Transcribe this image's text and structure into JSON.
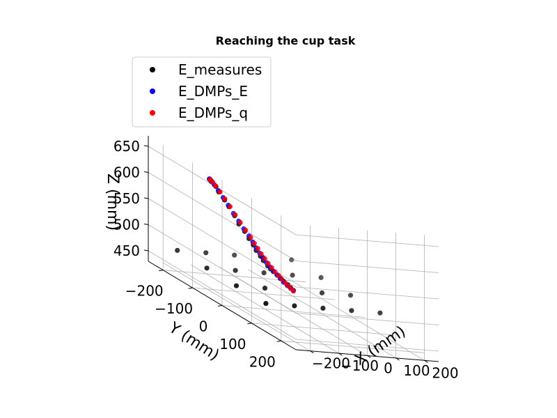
{
  "chart_data": {
    "type": "scatter",
    "projection": "3d",
    "title": "Reaching the cup task",
    "xlabel": "X (mm)",
    "ylabel": "Y (mm)",
    "zlabel": "Z (mm)",
    "xlim": [
      -250,
      250
    ],
    "ylim": [
      -250,
      250
    ],
    "zlim": [
      430,
      670
    ],
    "x_ticks": [
      -200,
      -100,
      0,
      100,
      200
    ],
    "y_ticks": [
      -200,
      -100,
      0,
      100,
      200
    ],
    "z_ticks": [
      450,
      500,
      550,
      600,
      650
    ],
    "x_tick_labels": [
      "−200",
      "−100",
      "0",
      "100",
      "200"
    ],
    "y_tick_labels": [
      "−200",
      "−100",
      "0",
      "100",
      "200"
    ],
    "z_tick_labels": [
      "450",
      "500",
      "550",
      "600",
      "650"
    ],
    "grid": true,
    "legend_position": "upper-left",
    "series": [
      {
        "name": "E_measures",
        "color": "#000000",
        "points": [
          [
            -200,
            -200,
            470
          ],
          [
            -100,
            -200,
            470
          ],
          [
            0,
            -200,
            470
          ],
          [
            100,
            -200,
            470
          ],
          [
            200,
            -200,
            470
          ],
          [
            -200,
            -100,
            470
          ],
          [
            -100,
            -100,
            470
          ],
          [
            0,
            -100,
            470
          ],
          [
            100,
            -100,
            470
          ],
          [
            200,
            -100,
            470
          ],
          [
            -200,
            0,
            470
          ],
          [
            -100,
            0,
            470
          ],
          [
            0,
            0,
            470
          ],
          [
            100,
            0,
            470
          ],
          [
            200,
            0,
            470
          ],
          [
            -200,
            100,
            470
          ],
          [
            -100,
            100,
            470
          ],
          [
            0,
            100,
            470
          ],
          [
            100,
            100,
            470
          ],
          [
            200,
            100,
            470
          ],
          [
            0,
            0,
            470
          ],
          [
            -10,
            0,
            475
          ],
          [
            -20,
            0,
            480
          ],
          [
            -30,
            -5,
            485
          ],
          [
            -40,
            -5,
            490
          ],
          [
            -50,
            -5,
            495
          ],
          [
            -60,
            -10,
            500
          ],
          [
            -70,
            -10,
            505
          ],
          [
            -80,
            -10,
            510
          ],
          [
            -90,
            -15,
            518
          ],
          [
            -100,
            -15,
            526
          ],
          [
            -110,
            -20,
            535
          ],
          [
            -120,
            -20,
            545
          ],
          [
            -130,
            -25,
            555
          ],
          [
            -145,
            -25,
            568
          ],
          [
            -160,
            -30,
            580
          ],
          [
            -175,
            -30,
            595
          ],
          [
            -190,
            -35,
            610
          ],
          [
            -205,
            -35,
            622
          ],
          [
            -220,
            -40,
            635
          ],
          [
            -230,
            -40,
            645
          ],
          [
            -240,
            -45,
            652
          ],
          [
            -245,
            -45,
            655
          ],
          [
            -248,
            -45,
            657
          ]
        ]
      },
      {
        "name": "E_DMPs_E",
        "color": "#0000ff",
        "points": [
          [
            0,
            0,
            470
          ],
          [
            -10,
            0,
            474
          ],
          [
            -20,
            -2,
            478
          ],
          [
            -30,
            -4,
            483
          ],
          [
            -40,
            -6,
            489
          ],
          [
            -50,
            -8,
            495
          ],
          [
            -60,
            -10,
            501
          ],
          [
            -70,
            -12,
            508
          ],
          [
            -80,
            -14,
            515
          ],
          [
            -90,
            -16,
            523
          ],
          [
            -100,
            -18,
            531
          ],
          [
            -110,
            -20,
            540
          ],
          [
            -120,
            -22,
            550
          ],
          [
            -130,
            -25,
            560
          ],
          [
            -145,
            -28,
            572
          ],
          [
            -160,
            -31,
            585
          ],
          [
            -175,
            -34,
            598
          ],
          [
            -190,
            -37,
            612
          ],
          [
            -205,
            -40,
            625
          ],
          [
            -220,
            -42,
            637
          ],
          [
            -232,
            -44,
            647
          ],
          [
            -242,
            -45,
            654
          ],
          [
            -247,
            -45,
            657
          ]
        ]
      },
      {
        "name": "E_DMPs_q",
        "color": "#ff0000",
        "points": [
          [
            0,
            0,
            469
          ],
          [
            -8,
            0,
            473
          ],
          [
            -16,
            -2,
            477
          ],
          [
            -25,
            -3,
            482
          ],
          [
            -35,
            -5,
            488
          ],
          [
            -45,
            -7,
            494
          ],
          [
            -55,
            -9,
            500
          ],
          [
            -65,
            -11,
            507
          ],
          [
            -75,
            -13,
            514
          ],
          [
            -85,
            -15,
            522
          ],
          [
            -95,
            -17,
            530
          ],
          [
            -105,
            -19,
            539
          ],
          [
            -115,
            -21,
            548
          ],
          [
            -125,
            -24,
            558
          ],
          [
            -140,
            -27,
            570
          ],
          [
            -155,
            -30,
            583
          ],
          [
            -170,
            -33,
            596
          ],
          [
            -185,
            -36,
            610
          ],
          [
            -200,
            -39,
            623
          ],
          [
            -215,
            -41,
            635
          ],
          [
            -228,
            -43,
            645
          ],
          [
            -238,
            -44,
            652
          ],
          [
            -245,
            -45,
            656
          ]
        ]
      }
    ]
  }
}
